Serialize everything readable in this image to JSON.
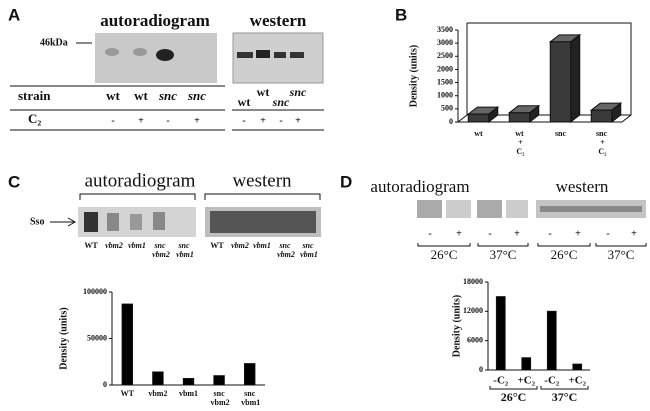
{
  "panel_labels": [
    "A",
    "B",
    "C",
    "D"
  ],
  "panel_a": {
    "autoradiogram": "autoradiogram",
    "western": "western",
    "marker": "46kDa",
    "strain_label": "strain",
    "c2_label": "C₂",
    "strains": [
      "wt",
      "wt",
      "snc",
      "snc"
    ],
    "treatments": [
      "-",
      "+",
      "-",
      "+"
    ],
    "western_strains": [
      "wt",
      "wt",
      "snc",
      "snc"
    ],
    "western_treatments": [
      "-",
      "+",
      "-",
      "+"
    ]
  },
  "panel_c": {
    "autoradiogram": "autoradiogram",
    "western": "western",
    "protein": "Sso",
    "lanes": [
      "WT",
      "vbm2",
      "vbm1",
      "snc vbm2",
      "snc vbm1"
    ],
    "western_lanes": [
      "WT",
      "vbm2",
      "vbm1",
      "snc vbm2",
      "snc vbm1"
    ]
  },
  "panel_d": {
    "autoradiogram": "autoradiogram",
    "western": "western",
    "treatments": [
      "-",
      "+",
      "-",
      "+",
      "-",
      "+",
      "-",
      "+"
    ],
    "temperatures": [
      "26°C",
      "37°C",
      "26°C",
      "37°C"
    ]
  },
  "chart_data": [
    {
      "type": "bar",
      "three_d": true,
      "y_label": "Density (units)",
      "categories": [
        "wt",
        "wt + C₂",
        "snc",
        "snc + C₂"
      ],
      "values": [
        300,
        350,
        3050,
        450
      ],
      "color": "#3a3a3a",
      "ylim": [
        0,
        3500
      ],
      "yticks": [
        0,
        500,
        1000,
        1500,
        2000,
        2500,
        3000,
        3500
      ]
    },
    {
      "type": "bar",
      "y_label": "Density (units)",
      "categories": [
        "WT",
        "vbm2",
        "vbm1",
        "snc vbm2",
        "snc vbm1"
      ],
      "values": [
        87000,
        14000,
        7000,
        10000,
        23000
      ],
      "color": "#000000",
      "ylim": [
        0,
        100000
      ],
      "yticks": [
        0,
        50000,
        100000
      ]
    },
    {
      "type": "bar",
      "y_label": "Density (units)",
      "categories": [
        "-C₂",
        "+C₂",
        "-C₂",
        "+C₂"
      ],
      "group_labels": [
        "26°C",
        "37°C"
      ],
      "values": [
        15000,
        2500,
        12000,
        1200
      ],
      "color": "#000000",
      "ylim": [
        0,
        18000
      ],
      "yticks": [
        0,
        6000,
        12000,
        18000
      ]
    }
  ]
}
